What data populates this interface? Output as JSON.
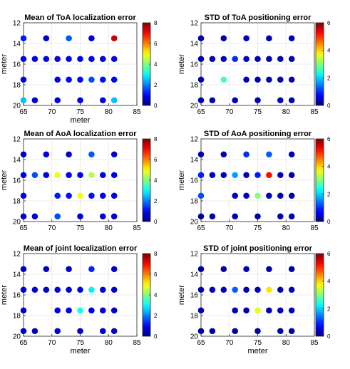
{
  "chart_data": [
    {
      "type": "scatter",
      "title": "Mean of ToA localization error",
      "xlabel": "meter",
      "ylabel": "meter",
      "xlim": [
        65,
        85
      ],
      "ylim": [
        12,
        20
      ],
      "y_reversed": true,
      "xticks": [
        "65",
        "70",
        "75",
        "80",
        "85"
      ],
      "yticks": [
        "12",
        "14",
        "16",
        "18",
        "20"
      ],
      "colorbar": {
        "colormap": "jet",
        "range": [
          0,
          8
        ],
        "ticks": [
          "0",
          "2",
          "4",
          "6",
          "8"
        ]
      },
      "grid": true,
      "points": [
        {
          "x": 65,
          "y": 13.5,
          "v": 1.2
        },
        {
          "x": 69,
          "y": 13.5,
          "v": 0.6
        },
        {
          "x": 73,
          "y": 13.5,
          "v": 1.7
        },
        {
          "x": 77,
          "y": 13.5,
          "v": 0.7
        },
        {
          "x": 81,
          "y": 13.5,
          "v": 7.4
        },
        {
          "x": 65,
          "y": 15.5,
          "v": 0.9
        },
        {
          "x": 67,
          "y": 15.5,
          "v": 0.8
        },
        {
          "x": 69,
          "y": 15.5,
          "v": 0.9
        },
        {
          "x": 71,
          "y": 15.5,
          "v": 0.8
        },
        {
          "x": 73,
          "y": 15.5,
          "v": 0.9
        },
        {
          "x": 75,
          "y": 15.5,
          "v": 0.8
        },
        {
          "x": 77,
          "y": 15.5,
          "v": 0.9
        },
        {
          "x": 79,
          "y": 15.5,
          "v": 0.8
        },
        {
          "x": 81,
          "y": 15.5,
          "v": 0.8
        },
        {
          "x": 65,
          "y": 17.5,
          "v": 0.8
        },
        {
          "x": 71,
          "y": 17.5,
          "v": 0.9
        },
        {
          "x": 73,
          "y": 17.5,
          "v": 1.0
        },
        {
          "x": 75,
          "y": 17.5,
          "v": 0.9
        },
        {
          "x": 77,
          "y": 17.5,
          "v": 1.6
        },
        {
          "x": 79,
          "y": 17.5,
          "v": 1.1
        },
        {
          "x": 81,
          "y": 17.5,
          "v": 0.9
        },
        {
          "x": 65,
          "y": 19.5,
          "v": 2.5
        },
        {
          "x": 67,
          "y": 19.5,
          "v": 0.6
        },
        {
          "x": 71,
          "y": 19.5,
          "v": 0.7
        },
        {
          "x": 75,
          "y": 19.5,
          "v": 0.8
        },
        {
          "x": 79,
          "y": 19.5,
          "v": 0.8
        },
        {
          "x": 81,
          "y": 19.5,
          "v": 2.5
        }
      ]
    },
    {
      "type": "scatter",
      "title": "STD of ToA positioning error",
      "xlabel": "",
      "ylabel": "meter",
      "xlim": [
        65,
        85
      ],
      "ylim": [
        12,
        20
      ],
      "y_reversed": true,
      "xticks": [
        "65",
        "70",
        "75",
        "80",
        "85"
      ],
      "yticks": [
        "12",
        "14",
        "16",
        "18",
        "20"
      ],
      "colorbar": {
        "colormap": "jet",
        "range": [
          0,
          6
        ],
        "ticks": [
          "0",
          "2",
          "4",
          "6"
        ]
      },
      "grid": true,
      "points": [
        {
          "x": 65,
          "y": 13.5,
          "v": 0.3
        },
        {
          "x": 69,
          "y": 13.5,
          "v": 0.3
        },
        {
          "x": 73,
          "y": 13.5,
          "v": 0.4
        },
        {
          "x": 77,
          "y": 13.5,
          "v": 0.3
        },
        {
          "x": 81,
          "y": 13.5,
          "v": 0.3
        },
        {
          "x": 65,
          "y": 15.5,
          "v": 0.3
        },
        {
          "x": 67,
          "y": 15.5,
          "v": 0.3
        },
        {
          "x": 69,
          "y": 15.5,
          "v": 0.3
        },
        {
          "x": 71,
          "y": 15.5,
          "v": 1.0
        },
        {
          "x": 73,
          "y": 15.5,
          "v": 0.4
        },
        {
          "x": 75,
          "y": 15.5,
          "v": 0.3
        },
        {
          "x": 77,
          "y": 15.5,
          "v": 0.3
        },
        {
          "x": 79,
          "y": 15.5,
          "v": 0.3
        },
        {
          "x": 81,
          "y": 15.5,
          "v": 0.3
        },
        {
          "x": 65,
          "y": 17.5,
          "v": 0.3
        },
        {
          "x": 69,
          "y": 17.5,
          "v": 2.6
        },
        {
          "x": 73,
          "y": 17.5,
          "v": 0.4
        },
        {
          "x": 75,
          "y": 17.5,
          "v": 0.3
        },
        {
          "x": 77,
          "y": 17.5,
          "v": 0.3
        },
        {
          "x": 79,
          "y": 17.5,
          "v": 0.3
        },
        {
          "x": 81,
          "y": 17.5,
          "v": 0.3
        },
        {
          "x": 65,
          "y": 19.5,
          "v": 0.3
        },
        {
          "x": 67,
          "y": 19.5,
          "v": 0.3
        },
        {
          "x": 71,
          "y": 19.5,
          "v": 0.3
        },
        {
          "x": 75,
          "y": 19.5,
          "v": 0.3
        },
        {
          "x": 79,
          "y": 19.5,
          "v": 0.3
        },
        {
          "x": 81,
          "y": 19.5,
          "v": 0.3
        }
      ]
    },
    {
      "type": "scatter",
      "title": "Mean of AoA localization error",
      "xlabel": "",
      "ylabel": "meter",
      "xlim": [
        65,
        85
      ],
      "ylim": [
        12,
        20
      ],
      "y_reversed": true,
      "xticks": [
        "65",
        "70",
        "75",
        "80",
        "85"
      ],
      "yticks": [
        "12",
        "14",
        "16",
        "18",
        "20"
      ],
      "colorbar": {
        "colormap": "jet",
        "range": [
          0,
          8
        ],
        "ticks": [
          "0",
          "2",
          "4",
          "6",
          "8"
        ]
      },
      "grid": true,
      "points": [
        {
          "x": 65,
          "y": 13.5,
          "v": 0.5
        },
        {
          "x": 69,
          "y": 13.5,
          "v": 0.7
        },
        {
          "x": 73,
          "y": 13.5,
          "v": 0.6
        },
        {
          "x": 77,
          "y": 13.5,
          "v": 1.7
        },
        {
          "x": 81,
          "y": 13.5,
          "v": 0.6
        },
        {
          "x": 65,
          "y": 15.5,
          "v": 0.8
        },
        {
          "x": 67,
          "y": 15.5,
          "v": 1.6
        },
        {
          "x": 69,
          "y": 15.5,
          "v": 0.8
        },
        {
          "x": 71,
          "y": 15.5,
          "v": 4.9
        },
        {
          "x": 73,
          "y": 15.5,
          "v": 0.9
        },
        {
          "x": 75,
          "y": 15.5,
          "v": 0.8
        },
        {
          "x": 77,
          "y": 15.5,
          "v": 4.4
        },
        {
          "x": 79,
          "y": 15.5,
          "v": 0.8
        },
        {
          "x": 81,
          "y": 15.5,
          "v": 0.8
        },
        {
          "x": 65,
          "y": 17.5,
          "v": 0.8
        },
        {
          "x": 71,
          "y": 17.5,
          "v": 1.2
        },
        {
          "x": 73,
          "y": 17.5,
          "v": 1.1
        },
        {
          "x": 75,
          "y": 17.5,
          "v": 4.9
        },
        {
          "x": 77,
          "y": 17.5,
          "v": 1.1
        },
        {
          "x": 79,
          "y": 17.5,
          "v": 0.9
        },
        {
          "x": 81,
          "y": 17.5,
          "v": 0.8
        },
        {
          "x": 65,
          "y": 19.5,
          "v": 0.6
        },
        {
          "x": 67,
          "y": 19.5,
          "v": 0.6
        },
        {
          "x": 71,
          "y": 19.5,
          "v": 1.6
        },
        {
          "x": 75,
          "y": 19.5,
          "v": 0.7
        },
        {
          "x": 79,
          "y": 19.5,
          "v": 0.7
        },
        {
          "x": 81,
          "y": 19.5,
          "v": 0.6
        }
      ]
    },
    {
      "type": "scatter",
      "title": "STD of AoA positioning error",
      "xlabel": "",
      "ylabel": "meter",
      "xlim": [
        65,
        85
      ],
      "ylim": [
        12,
        20
      ],
      "y_reversed": true,
      "xticks": [
        "65",
        "70",
        "75",
        "80",
        "85"
      ],
      "yticks": [
        "12",
        "14",
        "16",
        "18",
        "20"
      ],
      "colorbar": {
        "colormap": "jet",
        "range": [
          0,
          6
        ],
        "ticks": [
          "0",
          "2",
          "4",
          "6"
        ]
      },
      "grid": true,
      "points": [
        {
          "x": 65,
          "y": 13.5,
          "v": 0.3
        },
        {
          "x": 69,
          "y": 13.5,
          "v": 0.3
        },
        {
          "x": 73,
          "y": 13.5,
          "v": 1.0
        },
        {
          "x": 77,
          "y": 13.5,
          "v": 1.3
        },
        {
          "x": 81,
          "y": 13.5,
          "v": 0.3
        },
        {
          "x": 65,
          "y": 15.5,
          "v": 0.9
        },
        {
          "x": 67,
          "y": 15.5,
          "v": 0.4
        },
        {
          "x": 69,
          "y": 15.5,
          "v": 0.4
        },
        {
          "x": 71,
          "y": 15.5,
          "v": 1.7
        },
        {
          "x": 73,
          "y": 15.5,
          "v": 0.4
        },
        {
          "x": 75,
          "y": 15.5,
          "v": 0.9
        },
        {
          "x": 77,
          "y": 15.5,
          "v": 5.2
        },
        {
          "x": 79,
          "y": 15.5,
          "v": 0.4
        },
        {
          "x": 81,
          "y": 15.5,
          "v": 0.3
        },
        {
          "x": 65,
          "y": 17.5,
          "v": 1.2
        },
        {
          "x": 71,
          "y": 17.5,
          "v": 0.4
        },
        {
          "x": 73,
          "y": 17.5,
          "v": 0.4
        },
        {
          "x": 75,
          "y": 17.5,
          "v": 3.0
        },
        {
          "x": 77,
          "y": 17.5,
          "v": 0.4
        },
        {
          "x": 79,
          "y": 17.5,
          "v": 0.3
        },
        {
          "x": 81,
          "y": 17.5,
          "v": 0.3
        },
        {
          "x": 65,
          "y": 19.5,
          "v": 0.1
        },
        {
          "x": 67,
          "y": 19.5,
          "v": 0.3
        },
        {
          "x": 71,
          "y": 19.5,
          "v": 0.3
        },
        {
          "x": 75,
          "y": 19.5,
          "v": 0.3
        },
        {
          "x": 79,
          "y": 19.5,
          "v": 0.3
        },
        {
          "x": 81,
          "y": 19.5,
          "v": 0.3
        }
      ]
    },
    {
      "type": "scatter",
      "title": "Mean of joint localization error",
      "xlabel": "meter",
      "ylabel": "meter",
      "xlim": [
        65,
        85
      ],
      "ylim": [
        12,
        20
      ],
      "y_reversed": true,
      "xticks": [
        "65",
        "70",
        "75",
        "80",
        "85"
      ],
      "yticks": [
        "12",
        "14",
        "16",
        "18",
        "20"
      ],
      "colorbar": {
        "colormap": "jet",
        "range": [
          0,
          8
        ],
        "ticks": [
          "0",
          "2",
          "4",
          "6",
          "8"
        ]
      },
      "grid": true,
      "points": [
        {
          "x": 65,
          "y": 13.5,
          "v": 0.5
        },
        {
          "x": 69,
          "y": 13.5,
          "v": 0.5
        },
        {
          "x": 73,
          "y": 13.5,
          "v": 0.6
        },
        {
          "x": 77,
          "y": 13.5,
          "v": 1.3
        },
        {
          "x": 81,
          "y": 13.5,
          "v": 0.6
        },
        {
          "x": 65,
          "y": 15.5,
          "v": 0.6
        },
        {
          "x": 67,
          "y": 15.5,
          "v": 0.6
        },
        {
          "x": 69,
          "y": 15.5,
          "v": 0.6
        },
        {
          "x": 71,
          "y": 15.5,
          "v": 0.8
        },
        {
          "x": 73,
          "y": 15.5,
          "v": 0.7
        },
        {
          "x": 75,
          "y": 15.5,
          "v": 0.8
        },
        {
          "x": 77,
          "y": 15.5,
          "v": 2.9
        },
        {
          "x": 79,
          "y": 15.5,
          "v": 0.7
        },
        {
          "x": 81,
          "y": 15.5,
          "v": 0.6
        },
        {
          "x": 65,
          "y": 17.5,
          "v": 0.6
        },
        {
          "x": 71,
          "y": 17.5,
          "v": 0.8
        },
        {
          "x": 73,
          "y": 17.5,
          "v": 0.8
        },
        {
          "x": 75,
          "y": 17.5,
          "v": 3.1
        },
        {
          "x": 77,
          "y": 17.5,
          "v": 0.8
        },
        {
          "x": 79,
          "y": 17.5,
          "v": 0.7
        },
        {
          "x": 81,
          "y": 17.5,
          "v": 0.6
        },
        {
          "x": 65,
          "y": 19.5,
          "v": 0.5
        },
        {
          "x": 67,
          "y": 19.5,
          "v": 0.5
        },
        {
          "x": 71,
          "y": 19.5,
          "v": 0.6
        },
        {
          "x": 75,
          "y": 19.5,
          "v": 0.6
        },
        {
          "x": 79,
          "y": 19.5,
          "v": 0.6
        },
        {
          "x": 81,
          "y": 19.5,
          "v": 0.5
        }
      ]
    },
    {
      "type": "scatter",
      "title": "STD of joint positioning error",
      "xlabel": "meter",
      "ylabel": "meter",
      "xlim": [
        65,
        85
      ],
      "ylim": [
        12,
        20
      ],
      "y_reversed": true,
      "xticks": [
        "65",
        "70",
        "75",
        "80",
        "85"
      ],
      "yticks": [
        "12",
        "14",
        "16",
        "18",
        "20"
      ],
      "colorbar": {
        "colormap": "jet",
        "range": [
          0,
          6
        ],
        "ticks": [
          "0",
          "2",
          "4",
          "6"
        ]
      },
      "grid": true,
      "points": [
        {
          "x": 65,
          "y": 13.5,
          "v": 0.2
        },
        {
          "x": 69,
          "y": 13.5,
          "v": 0.2
        },
        {
          "x": 73,
          "y": 13.5,
          "v": 0.3
        },
        {
          "x": 77,
          "y": 13.5,
          "v": 0.3
        },
        {
          "x": 81,
          "y": 13.5,
          "v": 0.2
        },
        {
          "x": 65,
          "y": 15.5,
          "v": 0.3
        },
        {
          "x": 67,
          "y": 15.5,
          "v": 0.3
        },
        {
          "x": 69,
          "y": 15.5,
          "v": 0.3
        },
        {
          "x": 71,
          "y": 15.5,
          "v": 1.3
        },
        {
          "x": 73,
          "y": 15.5,
          "v": 0.3
        },
        {
          "x": 75,
          "y": 15.5,
          "v": 0.3
        },
        {
          "x": 77,
          "y": 15.5,
          "v": 3.9
        },
        {
          "x": 79,
          "y": 15.5,
          "v": 0.3
        },
        {
          "x": 81,
          "y": 15.5,
          "v": 0.3
        },
        {
          "x": 65,
          "y": 17.5,
          "v": 0.3
        },
        {
          "x": 71,
          "y": 17.5,
          "v": 0.3
        },
        {
          "x": 73,
          "y": 17.5,
          "v": 0.3
        },
        {
          "x": 75,
          "y": 17.5,
          "v": 3.6
        },
        {
          "x": 77,
          "y": 17.5,
          "v": 0.3
        },
        {
          "x": 79,
          "y": 17.5,
          "v": 0.3
        },
        {
          "x": 81,
          "y": 17.5,
          "v": 0.3
        },
        {
          "x": 65,
          "y": 19.5,
          "v": 0.2
        },
        {
          "x": 67,
          "y": 19.5,
          "v": 0.2
        },
        {
          "x": 71,
          "y": 19.5,
          "v": 0.2
        },
        {
          "x": 75,
          "y": 19.5,
          "v": 0.2
        },
        {
          "x": 79,
          "y": 19.5,
          "v": 0.2
        },
        {
          "x": 81,
          "y": 19.5,
          "v": 0.2
        }
      ]
    }
  ]
}
